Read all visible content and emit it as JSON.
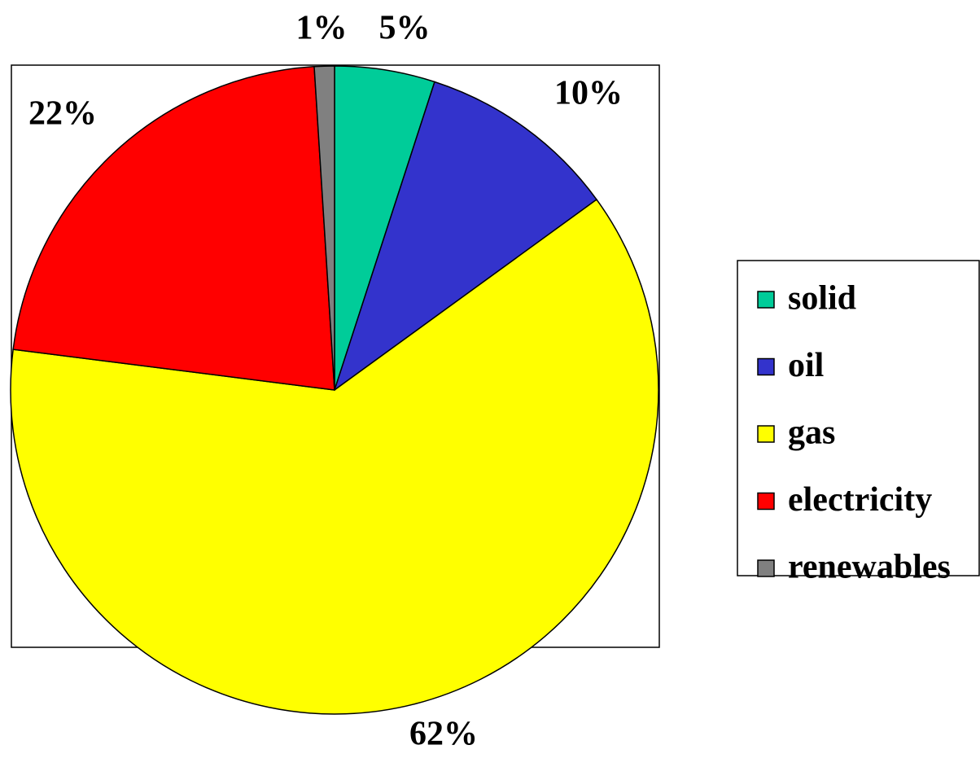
{
  "chart_data": {
    "type": "pie",
    "categories": [
      "solid",
      "oil",
      "gas",
      "electricity",
      "renewables"
    ],
    "values": [
      5,
      10,
      62,
      22,
      1
    ],
    "value_labels": [
      "5%",
      "10%",
      "62%",
      "22%",
      "1%"
    ],
    "colors": [
      "#00cc99",
      "#3333cc",
      "#ffff00",
      "#ff0000",
      "#808080"
    ],
    "legend": "right"
  }
}
